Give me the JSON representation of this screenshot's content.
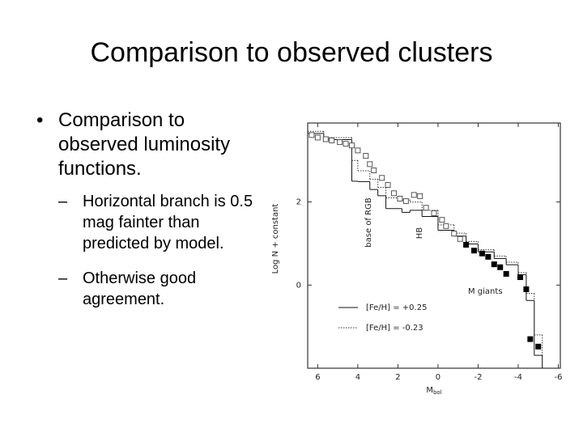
{
  "slide": {
    "title": "Comparison to observed clusters",
    "bullets": [
      {
        "text": "Comparison to observed luminosity functions.",
        "sub": [
          "Horizontal branch is 0.5 mag fainter than predicted by model.",
          "Otherwise good agreement."
        ]
      }
    ]
  },
  "chart_data": {
    "type": "scatter",
    "xlabel": {
      "main": "M",
      "sub": "bol"
    },
    "ylabel": "Log N + constant",
    "xlim": [
      6.5,
      -6.1
    ],
    "ylim": [
      -2,
      3.9
    ],
    "xticks": [
      6,
      4,
      2,
      0,
      -2,
      -4,
      -6
    ],
    "yticks": [
      2,
      0
    ],
    "grid": false,
    "annotations": [
      "base of RGB",
      "HB",
      "M giants"
    ],
    "series": [
      {
        "name": "[Fe/H] = +0.25",
        "style": "solid",
        "color": "#111111",
        "bins": [
          6.5,
          5.7,
          4.3,
          4.0,
          3.4,
          3.0,
          2.6,
          1.8,
          1.4,
          0.8,
          0.0,
          -0.8,
          -1.4,
          -2.0,
          -2.8,
          -3.4,
          -4.0,
          -4.4,
          -4.8,
          -5.2
        ],
        "values": [
          3.65,
          3.5,
          2.5,
          2.49,
          2.3,
          2.15,
          1.84,
          1.75,
          1.8,
          1.65,
          1.32,
          1.18,
          0.99,
          0.8,
          0.64,
          0.49,
          0.25,
          -0.37,
          -1.69
        ]
      },
      {
        "name": "[Fe/H] = -0.23",
        "style": "dotted",
        "color": "#333333",
        "bins": [
          6.5,
          5.7,
          4.3,
          4.0,
          3.4,
          3.0,
          2.6,
          1.8,
          1.4,
          0.8,
          0.0,
          -0.8,
          -1.4,
          -2.0,
          -2.8,
          -3.4,
          -4.0,
          -4.4,
          -4.8,
          -5.2
        ],
        "values": [
          3.7,
          3.55,
          3.0,
          2.75,
          2.55,
          2.35,
          2.1,
          2.05,
          2.0,
          1.8,
          1.45,
          1.25,
          1.05,
          0.85,
          0.7,
          0.55,
          0.3,
          -0.2,
          -1.2
        ]
      },
      {
        "marker": "open",
        "color": "#555555",
        "x": [
          6.3,
          6.0,
          5.6,
          5.3,
          4.9,
          4.6,
          4.3,
          4.0,
          3.6,
          3.4,
          3.2,
          2.8,
          2.5,
          2.2,
          1.9,
          1.6,
          1.2,
          0.9,
          0.6,
          0.2,
          -0.2,
          -0.4,
          -0.8,
          -1.1
        ],
        "values": [
          3.61,
          3.55,
          3.51,
          3.48,
          3.44,
          3.4,
          3.36,
          3.24,
          3.11,
          2.91,
          2.76,
          2.58,
          2.41,
          2.21,
          2.08,
          2.02,
          2.17,
          2.14,
          1.86,
          1.73,
          1.57,
          1.42,
          1.24,
          1.11
        ]
      },
      {
        "marker": "filled",
        "color": "#000000",
        "x": [
          -1.4,
          -1.8,
          -2.2,
          -2.5,
          -2.8,
          -3.1,
          -3.4,
          -4.1,
          -4.4,
          -4.6,
          -5.0
        ],
        "values": [
          0.97,
          0.83,
          0.76,
          0.68,
          0.5,
          0.43,
          0.27,
          0.19,
          -0.1,
          -1.3,
          -1.48
        ]
      }
    ]
  }
}
